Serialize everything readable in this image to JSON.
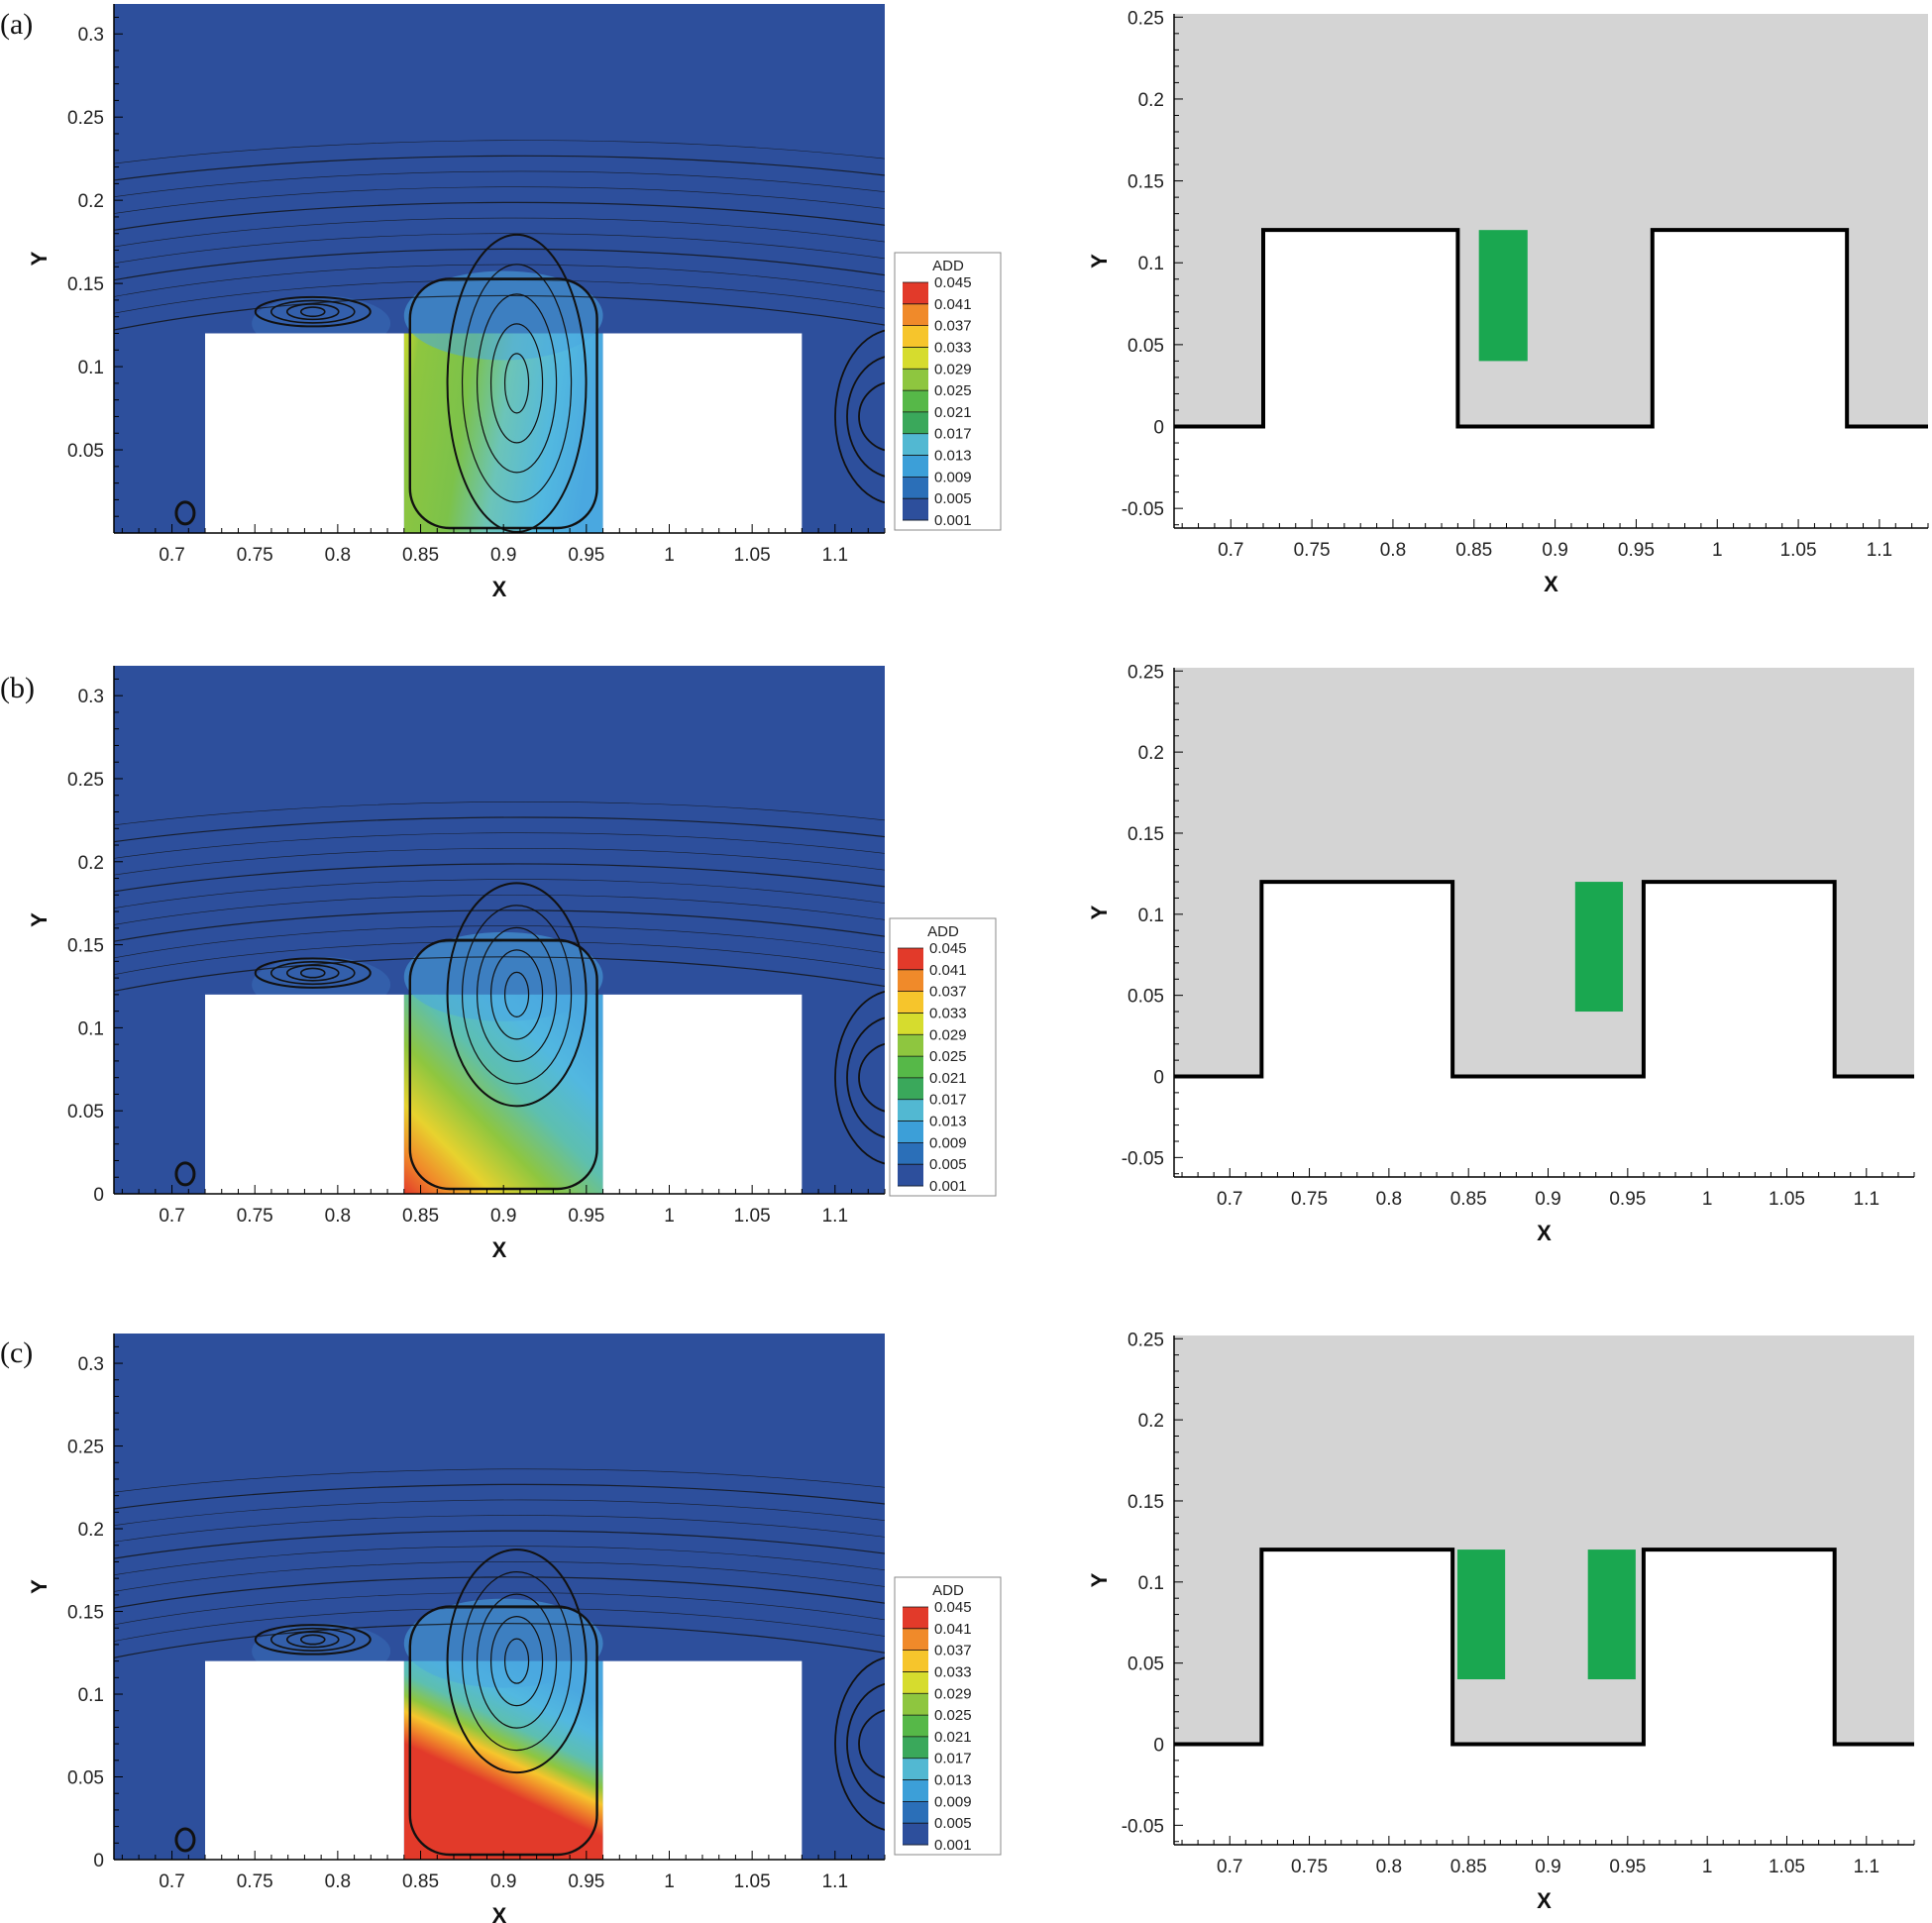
{
  "figure": {
    "colors": {
      "field_background": "#2d4f9c",
      "domain_background": "#d4d4d4",
      "green_region": "#1aa750",
      "wall": "#000000",
      "block": "#ffffff"
    },
    "colorbar": {
      "title": "ADD",
      "levels": [
        "0.045",
        "0.041",
        "0.037",
        "0.033",
        "0.029",
        "0.025",
        "0.021",
        "0.017",
        "0.013",
        "0.009",
        "0.005",
        "0.001"
      ],
      "colors": [
        "#e23a2a",
        "#f08a2a",
        "#f6c52c",
        "#d6dc2e",
        "#8ec63f",
        "#56b848",
        "#3aa85b",
        "#52b8d2",
        "#3c9fd8",
        "#2b6fb8",
        "#2d4f9c",
        "#2d4f9c"
      ]
    }
  },
  "chart_data": [
    {
      "id": "a-left",
      "type": "heatmap",
      "panel_label": "(a)",
      "xlabel": "X",
      "ylabel": "Y",
      "xlim": [
        0.665,
        1.13
      ],
      "ylim": [
        0,
        0.318
      ],
      "xticks": [
        0.7,
        0.75,
        0.8,
        0.85,
        0.9,
        0.95,
        1,
        1.05,
        1.1
      ],
      "xtick_labels": [
        "0.7",
        "0.75",
        "0.8",
        "0.85",
        "0.9",
        "0.95",
        "1",
        "1.05",
        "1.1"
      ],
      "yticks": [
        0.05,
        0.1,
        0.15,
        0.2,
        0.25,
        0.3
      ],
      "ytick_labels": [
        "0.05",
        "0.1",
        "0.15",
        "0.2",
        "0.25",
        "0.3"
      ],
      "blocks": [
        [
          0.72,
          0.84
        ],
        [
          0.96,
          1.08
        ]
      ],
      "block_height": 0.12,
      "cavity_x": [
        0.84,
        0.96
      ],
      "concentration": "moderate",
      "legend": "ADD"
    },
    {
      "id": "a-right",
      "type": "geometry",
      "xlabel": "X",
      "ylabel": "Y",
      "xlim": [
        0.665,
        1.13
      ],
      "ylim": [
        -0.062,
        0.252
      ],
      "xticks": [
        0.7,
        0.75,
        0.8,
        0.85,
        0.9,
        0.95,
        1,
        1.05,
        1.1
      ],
      "xtick_labels": [
        "0.7",
        "0.75",
        "0.8",
        "0.85",
        "0.9",
        "0.95",
        "1",
        "1.05",
        "1.1"
      ],
      "yticks": [
        -0.05,
        0,
        0.05,
        0.1,
        0.15,
        0.2,
        0.25
      ],
      "ytick_labels": [
        "-0.05",
        "0",
        "0.05",
        "0.1",
        "0.15",
        "0.2",
        "0.25"
      ],
      "blocks": [
        [
          0.72,
          0.84
        ],
        [
          0.96,
          1.08
        ]
      ],
      "block_height": 0.12,
      "sources": [
        {
          "x": [
            0.853,
            0.883
          ],
          "y": [
            0.04,
            0.12
          ]
        }
      ]
    },
    {
      "id": "b-left",
      "type": "heatmap",
      "panel_label": "(b)",
      "xlabel": "X",
      "ylabel": "Y",
      "xlim": [
        0.665,
        1.13
      ],
      "ylim": [
        0,
        0.318
      ],
      "xticks": [
        0.7,
        0.75,
        0.8,
        0.85,
        0.9,
        0.95,
        1,
        1.05,
        1.1
      ],
      "xtick_labels": [
        "0.7",
        "0.75",
        "0.8",
        "0.85",
        "0.9",
        "0.95",
        "1",
        "1.05",
        "1.1"
      ],
      "yticks": [
        0,
        0.05,
        0.1,
        0.15,
        0.2,
        0.25,
        0.3
      ],
      "ytick_labels": [
        "0",
        "0.05",
        "0.1",
        "0.15",
        "0.2",
        "0.25",
        "0.3"
      ],
      "blocks": [
        [
          0.72,
          0.84
        ],
        [
          0.96,
          1.08
        ]
      ],
      "block_height": 0.12,
      "cavity_x": [
        0.84,
        0.96
      ],
      "concentration": "high",
      "legend": "ADD"
    },
    {
      "id": "b-right",
      "type": "geometry",
      "xlabel": "X",
      "ylabel": "Y",
      "xlim": [
        0.665,
        1.13
      ],
      "ylim": [
        -0.062,
        0.252
      ],
      "xticks": [
        0.7,
        0.75,
        0.8,
        0.85,
        0.9,
        0.95,
        1,
        1.05,
        1.1
      ],
      "xtick_labels": [
        "0.7",
        "0.75",
        "0.8",
        "0.85",
        "0.9",
        "0.95",
        "1",
        "1.05",
        "1.1"
      ],
      "yticks": [
        -0.05,
        0,
        0.05,
        0.1,
        0.15,
        0.2,
        0.25
      ],
      "ytick_labels": [
        "-0.05",
        "0",
        "0.05",
        "0.1",
        "0.15",
        "0.2",
        "0.25"
      ],
      "blocks": [
        [
          0.72,
          0.84
        ],
        [
          0.96,
          1.08
        ]
      ],
      "block_height": 0.12,
      "sources": [
        {
          "x": [
            0.917,
            0.947
          ],
          "y": [
            0.04,
            0.12
          ]
        }
      ]
    },
    {
      "id": "c-left",
      "type": "heatmap",
      "panel_label": "(c)",
      "xlabel": "X",
      "ylabel": "Y",
      "xlim": [
        0.665,
        1.13
      ],
      "ylim": [
        0,
        0.318
      ],
      "xticks": [
        0.7,
        0.75,
        0.8,
        0.85,
        0.9,
        0.95,
        1,
        1.05,
        1.1
      ],
      "xtick_labels": [
        "0.7",
        "0.75",
        "0.8",
        "0.85",
        "0.9",
        "0.95",
        "1",
        "1.05",
        "1.1"
      ],
      "yticks": [
        0,
        0.05,
        0.1,
        0.15,
        0.2,
        0.25,
        0.3
      ],
      "ytick_labels": [
        "0",
        "0.05",
        "0.1",
        "0.15",
        "0.2",
        "0.25",
        "0.3"
      ],
      "blocks": [
        [
          0.72,
          0.84
        ],
        [
          0.96,
          1.08
        ]
      ],
      "block_height": 0.12,
      "cavity_x": [
        0.84,
        0.96
      ],
      "concentration": "very-high",
      "legend": "ADD"
    },
    {
      "id": "c-right",
      "type": "geometry",
      "xlabel": "X",
      "ylabel": "Y",
      "xlim": [
        0.665,
        1.13
      ],
      "ylim": [
        -0.062,
        0.252
      ],
      "xticks": [
        0.7,
        0.75,
        0.8,
        0.85,
        0.9,
        0.95,
        1,
        1.05,
        1.1
      ],
      "xtick_labels": [
        "0.7",
        "0.75",
        "0.8",
        "0.85",
        "0.9",
        "0.95",
        "1",
        "1.05",
        "1.1"
      ],
      "yticks": [
        -0.05,
        0,
        0.05,
        0.1,
        0.15,
        0.2,
        0.25
      ],
      "ytick_labels": [
        "-0.05",
        "0",
        "0.05",
        "0.1",
        "0.15",
        "0.2",
        "0.25"
      ],
      "blocks": [
        [
          0.72,
          0.84
        ],
        [
          0.96,
          1.08
        ]
      ],
      "block_height": 0.12,
      "sources": [
        {
          "x": [
            0.843,
            0.873
          ],
          "y": [
            0.04,
            0.12
          ]
        },
        {
          "x": [
            0.925,
            0.955
          ],
          "y": [
            0.04,
            0.12
          ]
        }
      ]
    }
  ]
}
